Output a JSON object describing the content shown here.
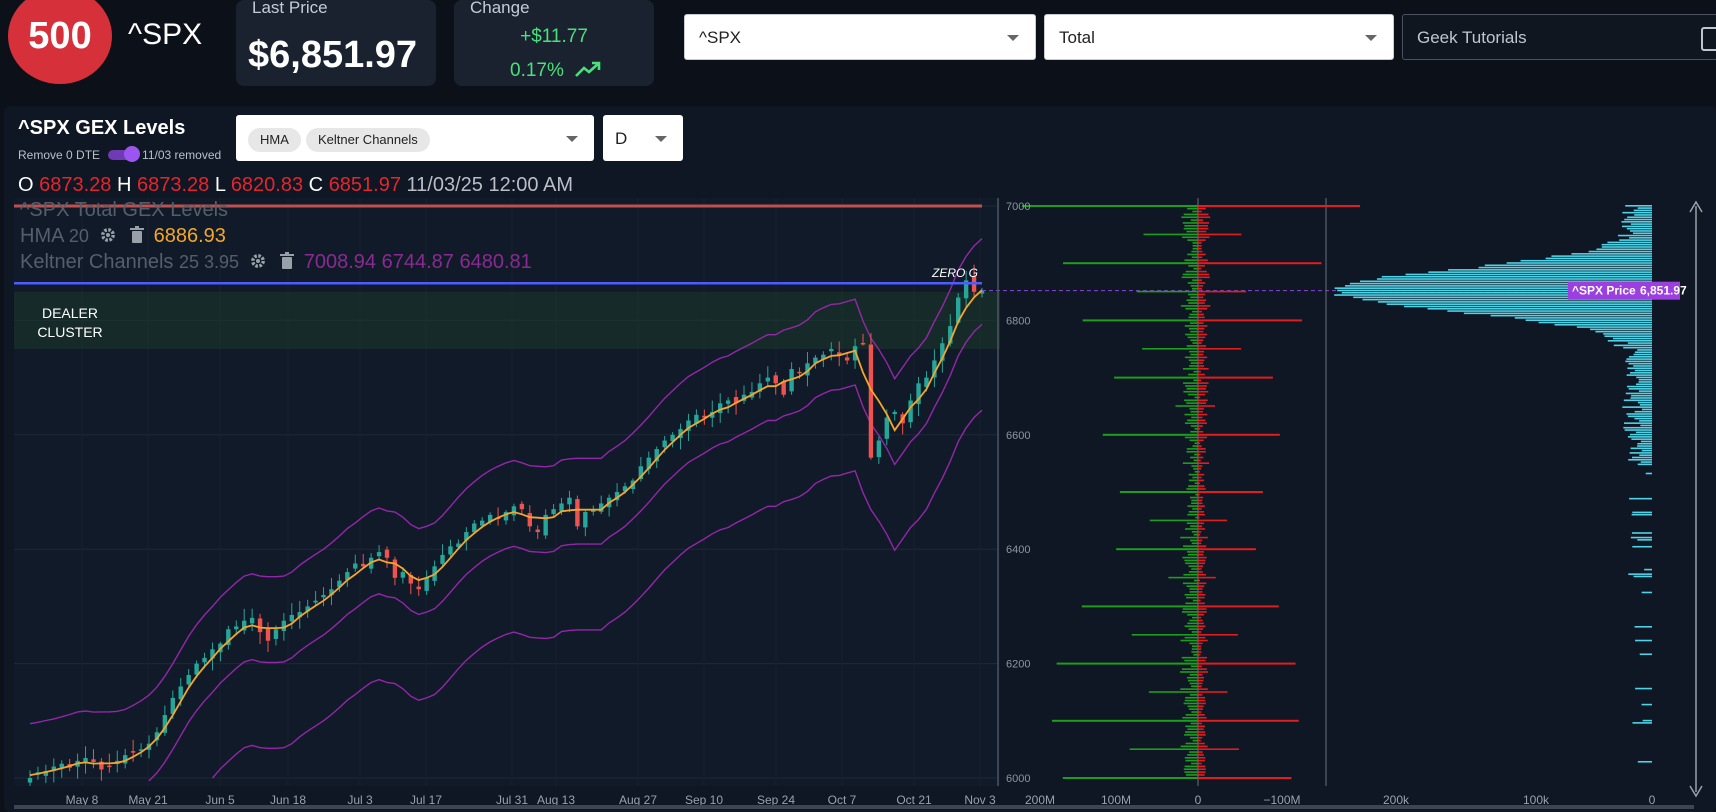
{
  "header": {
    "badge": "500",
    "symbol": "^SPX",
    "last_price_label": "Last Price",
    "last_price": "$6,851.97",
    "change_label": "Change",
    "change_value": "+$11.77",
    "change_pct": "0.17%",
    "symbol_select": "^SPX",
    "type_select": "Total",
    "tutorials_placeholder": "Geek Tutorials"
  },
  "panel": {
    "title": "^SPX GEX Levels",
    "remove_0dte_label": "Remove 0 DTE",
    "removed_label": "11/03 removed",
    "indicators": [
      "HMA",
      "Keltner Channels"
    ],
    "timeframe": "D"
  },
  "ohlc": {
    "o_label": "O",
    "o": "6873.28",
    "h_label": "H",
    "h": "6873.28",
    "l_label": "L",
    "l": "6820.83",
    "c_label": "C",
    "c": "6851.97",
    "timestamp": "11/03/25 12:00 AM"
  },
  "legend": {
    "series_title": "^SPX Total GEX Levels",
    "hma_label": "HMA",
    "hma_param": "20",
    "hma_value": "6886.93",
    "kc_label": "Keltner Channels",
    "kc_params": "25 3.95",
    "kc_values": "7008.94 6744.87 6480.81"
  },
  "annotations": {
    "zero_g": "ZERO G",
    "dealer_cluster_line1": "DEALER",
    "dealer_cluster_line2": "CLUSTER",
    "price_tag_label": "^SPX Price",
    "price_tag_value": "6,851.97"
  },
  "colors": {
    "badge": "#d6303a",
    "up": "#26a69a",
    "down": "#ef5350",
    "hma": "#f4a62a",
    "keltner": "#9c27b0",
    "zero_gamma": "#4c5cff",
    "resistance": "#c0504d",
    "positive_gex": "#1f9d1f",
    "negative_gex": "#e01e1e",
    "volume_profile": "#4fd3e6",
    "price_tag": "#9c3fe0"
  },
  "chart_data": {
    "type": "candlestick",
    "x_ticks": [
      "May 8",
      "May 21",
      "Jun 5",
      "Jun 18",
      "Jul 3",
      "Jul 17",
      "Jul 31",
      "Aug 13",
      "Aug 27",
      "Sep 10",
      "Sep 24",
      "Oct 7",
      "Oct 21",
      "Nov 3"
    ],
    "y_ticks": [
      7000,
      6800,
      6600,
      6400,
      6200,
      6000
    ],
    "ylim": [
      5980,
      7015
    ],
    "levels": {
      "resistance": 7000,
      "zero_gamma": 6865,
      "dealer_cluster": [
        6750,
        6850
      ]
    },
    "gex_axis_ticks": [
      "200M",
      "100M",
      "0",
      "−100M"
    ],
    "profile_axis_ticks": [
      "200k",
      "100k",
      "0"
    ],
    "closes": [
      6000,
      6010,
      6012,
      6020,
      6025,
      6018,
      6030,
      6035,
      6028,
      6015,
      6020,
      6030,
      6040,
      6045,
      6050,
      6060,
      6080,
      6110,
      6140,
      6160,
      6180,
      6200,
      6210,
      6225,
      6235,
      6260,
      6265,
      6275,
      6280,
      6255,
      6240,
      6260,
      6275,
      6285,
      6290,
      6300,
      6310,
      6320,
      6330,
      6345,
      6360,
      6375,
      6370,
      6385,
      6395,
      6385,
      6350,
      6360,
      6340,
      6330,
      6350,
      6370,
      6390,
      6405,
      6410,
      6430,
      6445,
      6450,
      6460,
      6455,
      6465,
      6475,
      6470,
      6440,
      6430,
      6460,
      6470,
      6480,
      6490,
      6440,
      6465,
      6470,
      6480,
      6490,
      6500,
      6510,
      6520,
      6545,
      6560,
      6575,
      6590,
      6600,
      6610,
      6625,
      6635,
      6630,
      6640,
      6655,
      6660,
      6655,
      6670,
      6675,
      6690,
      6700,
      6690,
      6670,
      6715,
      6710,
      6725,
      6735,
      6740,
      6750,
      6740,
      6730,
      6755,
      6760,
      6560,
      6590,
      6630,
      6640,
      6620,
      6660,
      6690,
      6700,
      6730,
      6760,
      6790,
      6840,
      6870,
      6850,
      6852
    ],
    "volume_profile_note": "horizontal histogram peaking near 6850"
  }
}
